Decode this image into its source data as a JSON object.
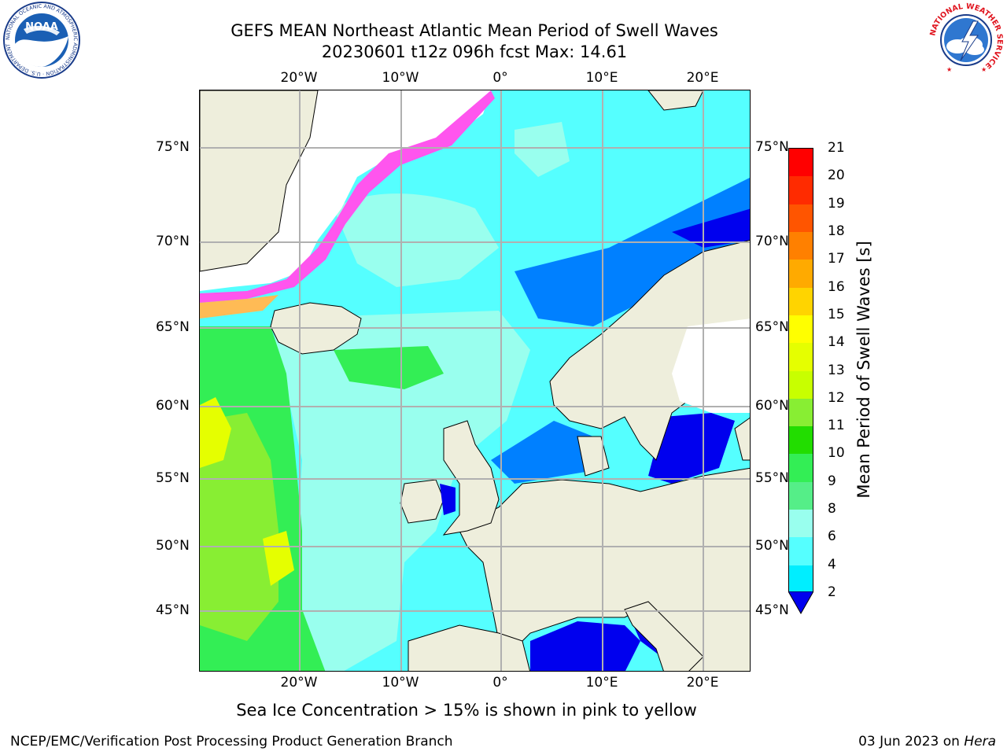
{
  "title": {
    "line1": "GEFS MEAN Northeast Atlantic Mean Period of Swell Waves",
    "line2": "20230601 t12z 096h fcst   Max: 14.61"
  },
  "logos": {
    "left": "noaa-logo",
    "left_text": "NATIONAL OCEANIC AND ATMOSPHERIC ADMINISTRATION · U.S. DEPARTMENT OF COMMERCE",
    "left_center": "NOAA",
    "right": "national-weather-service-logo",
    "right_text": "NATIONAL WEATHER SERVICE"
  },
  "axes": {
    "lon_ticks": [
      "20°W",
      "10°W",
      "0°",
      "10°E",
      "20°E"
    ],
    "lat_ticks": [
      "75°N",
      "70°N",
      "65°N",
      "60°N",
      "55°N",
      "50°N",
      "45°N"
    ],
    "gridlines": true
  },
  "colorbar": {
    "label": "Mean Period of Swell Waves [s]",
    "ticks": [
      "21",
      "20",
      "19",
      "18",
      "17",
      "16",
      "15",
      "14",
      "13",
      "12",
      "11",
      "10",
      "9",
      "8",
      "6",
      "4",
      "2"
    ],
    "colors": [
      "#ff0000",
      "#ff2b00",
      "#ff5500",
      "#ff8000",
      "#ffaa00",
      "#ffd400",
      "#ffff00",
      "#e5ff00",
      "#c8ff00",
      "#88ee33",
      "#22dd00",
      "#33ee55",
      "#55ee88",
      "#99ffee",
      "#55ffff",
      "#00eeff",
      "#0080ff"
    ],
    "extend_below_color": "#0000ee"
  },
  "colors": {
    "land": "#eeeedc",
    "ice_pink": "#ff55ee",
    "ice_orange": "#ffbb55",
    "ocean_main": "#55ffff",
    "ocean_light": "#99ffee",
    "swell_green": "#33ee55",
    "swell_light_green": "#88ee33",
    "swell_yellow": "#e5ff00",
    "calm_blue": "#0080ff",
    "calm_dark_blue": "#0000ee",
    "grid": "#b0b0b0"
  },
  "footer": {
    "note": "Sea Ice Concentration > 15% is shown in pink to yellow",
    "left": "NCEP/EMC/Verification Post Processing Product Generation Branch",
    "right_date": "03 Jun 2023 on ",
    "right_host": "Hera"
  }
}
